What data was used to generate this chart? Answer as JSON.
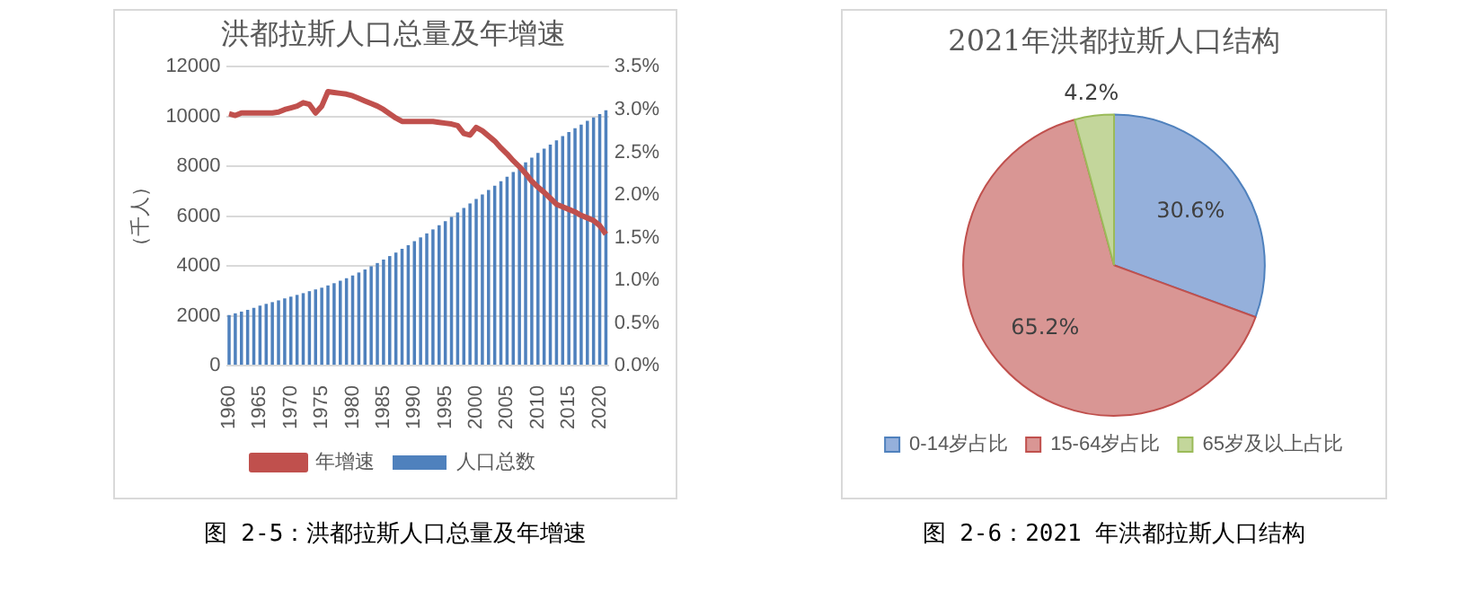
{
  "chart_data": [
    {
      "type": "bar",
      "title": "洪都拉斯人口总量及年增速",
      "ylabel": "（千人）",
      "categories": [
        "1960",
        null,
        null,
        null,
        null,
        "1965",
        null,
        null,
        null,
        null,
        "1970",
        null,
        null,
        null,
        null,
        "1975",
        null,
        null,
        null,
        null,
        "1980",
        null,
        null,
        null,
        null,
        "1985",
        null,
        null,
        null,
        null,
        "1990",
        null,
        null,
        null,
        null,
        "1995",
        null,
        null,
        null,
        null,
        "2000",
        null,
        null,
        null,
        null,
        "2005",
        null,
        null,
        null,
        null,
        "2010",
        null,
        null,
        null,
        null,
        "2015",
        null,
        null,
        null,
        null,
        "2020",
        null
      ],
      "series": [
        {
          "name": "人口总数",
          "type": "bar",
          "color": "#4f81bd",
          "values": [
            2030,
            2100,
            2170,
            2240,
            2320,
            2410,
            2480,
            2550,
            2620,
            2700,
            2770,
            2840,
            2910,
            2990,
            3060,
            3130,
            3220,
            3310,
            3410,
            3510,
            3620,
            3740,
            3860,
            3990,
            4120,
            4260,
            4400,
            4540,
            4690,
            4840,
            5000,
            5150,
            5310,
            5470,
            5640,
            5800,
            5970,
            6150,
            6330,
            6510,
            6690,
            6870,
            7050,
            7230,
            7410,
            7590,
            7780,
            7970,
            8160,
            8350,
            8540,
            8710,
            8880,
            9050,
            9220,
            9380,
            9530,
            9680,
            9830,
            9970,
            10100,
            10260
          ]
        },
        {
          "name": "年增速",
          "type": "line",
          "axis": "y2",
          "color": "#c0504d",
          "values": [
            2.95,
            2.93,
            2.96,
            2.96,
            2.96,
            2.96,
            2.96,
            2.96,
            2.97,
            3.0,
            3.02,
            3.04,
            3.08,
            3.06,
            2.96,
            3.04,
            3.21,
            3.2,
            3.19,
            3.18,
            3.16,
            3.13,
            3.1,
            3.07,
            3.04,
            3.0,
            2.95,
            2.9,
            2.86,
            2.86,
            2.86,
            2.86,
            2.86,
            2.86,
            2.85,
            2.84,
            2.83,
            2.81,
            2.72,
            2.7,
            2.79,
            2.75,
            2.69,
            2.63,
            2.55,
            2.48,
            2.4,
            2.33,
            2.25,
            2.16,
            2.09,
            2.03,
            1.96,
            1.89,
            1.86,
            1.83,
            1.8,
            1.76,
            1.73,
            1.7,
            1.64,
            1.54
          ]
        }
      ],
      "ylim": [
        0,
        12000
      ],
      "yticks": [
        0,
        2000,
        4000,
        6000,
        8000,
        10000,
        12000
      ],
      "y2lim": [
        0,
        3.5
      ],
      "y2ticks": [
        {
          "value": 0,
          "label": "0.0%"
        },
        {
          "value": 0.5,
          "label": "0.5%"
        },
        {
          "value": 1,
          "label": "1.0%"
        },
        {
          "value": 1.5,
          "label": "1.5%"
        },
        {
          "value": 2,
          "label": "2.0%"
        },
        {
          "value": 2.5,
          "label": "2.5%"
        },
        {
          "value": 3,
          "label": "3.0%"
        },
        {
          "value": 3.5,
          "label": "3.5%"
        }
      ],
      "grid": "y",
      "legend": "bottom",
      "marker": "none",
      "annotations": [
        "图 2-5：洪都拉斯人口总量及年增速"
      ]
    },
    {
      "type": "pie",
      "title": "2021年洪都拉斯人口结构",
      "categories": [
        "0-14岁占比",
        "15-64岁占比",
        "65岁及以上占比"
      ],
      "values": [
        30.6,
        65.2,
        4.2
      ],
      "colors": [
        "#95b0db",
        "#d99694",
        "#c3d69b"
      ],
      "value_labels": [
        "30.6%",
        "65.2%",
        "4.2%"
      ],
      "legend": "bottom",
      "annotations": [
        "图 2-6：2021 年洪都拉斯人口结构"
      ]
    }
  ]
}
